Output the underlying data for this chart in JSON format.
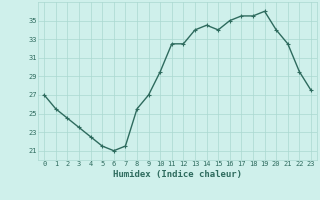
{
  "title": "",
  "xlabel": "Humidex (Indice chaleur)",
  "ylabel": "",
  "x": [
    0,
    1,
    2,
    3,
    4,
    5,
    6,
    7,
    8,
    9,
    10,
    11,
    12,
    13,
    14,
    15,
    16,
    17,
    18,
    19,
    20,
    21,
    22,
    23
  ],
  "y": [
    27.0,
    25.5,
    24.5,
    23.5,
    22.5,
    21.5,
    21.0,
    21.5,
    25.5,
    27.0,
    29.5,
    32.5,
    32.5,
    34.0,
    34.5,
    34.0,
    35.0,
    35.5,
    35.5,
    36.0,
    34.0,
    32.5,
    29.5,
    27.5
  ],
  "line_color": "#2e6b5e",
  "marker": "+",
  "marker_size": 3,
  "marker_linewidth": 0.8,
  "bg_color": "#cff0eb",
  "grid_color": "#aad8d0",
  "tick_label_color": "#2e6b5e",
  "axis_label_color": "#2e6b5e",
  "ylim": [
    20,
    37
  ],
  "yticks": [
    21,
    23,
    25,
    27,
    29,
    31,
    33,
    35
  ],
  "xticks": [
    0,
    1,
    2,
    3,
    4,
    5,
    6,
    7,
    8,
    9,
    10,
    11,
    12,
    13,
    14,
    15,
    16,
    17,
    18,
    19,
    20,
    21,
    22,
    23
  ],
  "linewidth": 1.0,
  "tick_fontsize": 5.0,
  "xlabel_fontsize": 6.5
}
